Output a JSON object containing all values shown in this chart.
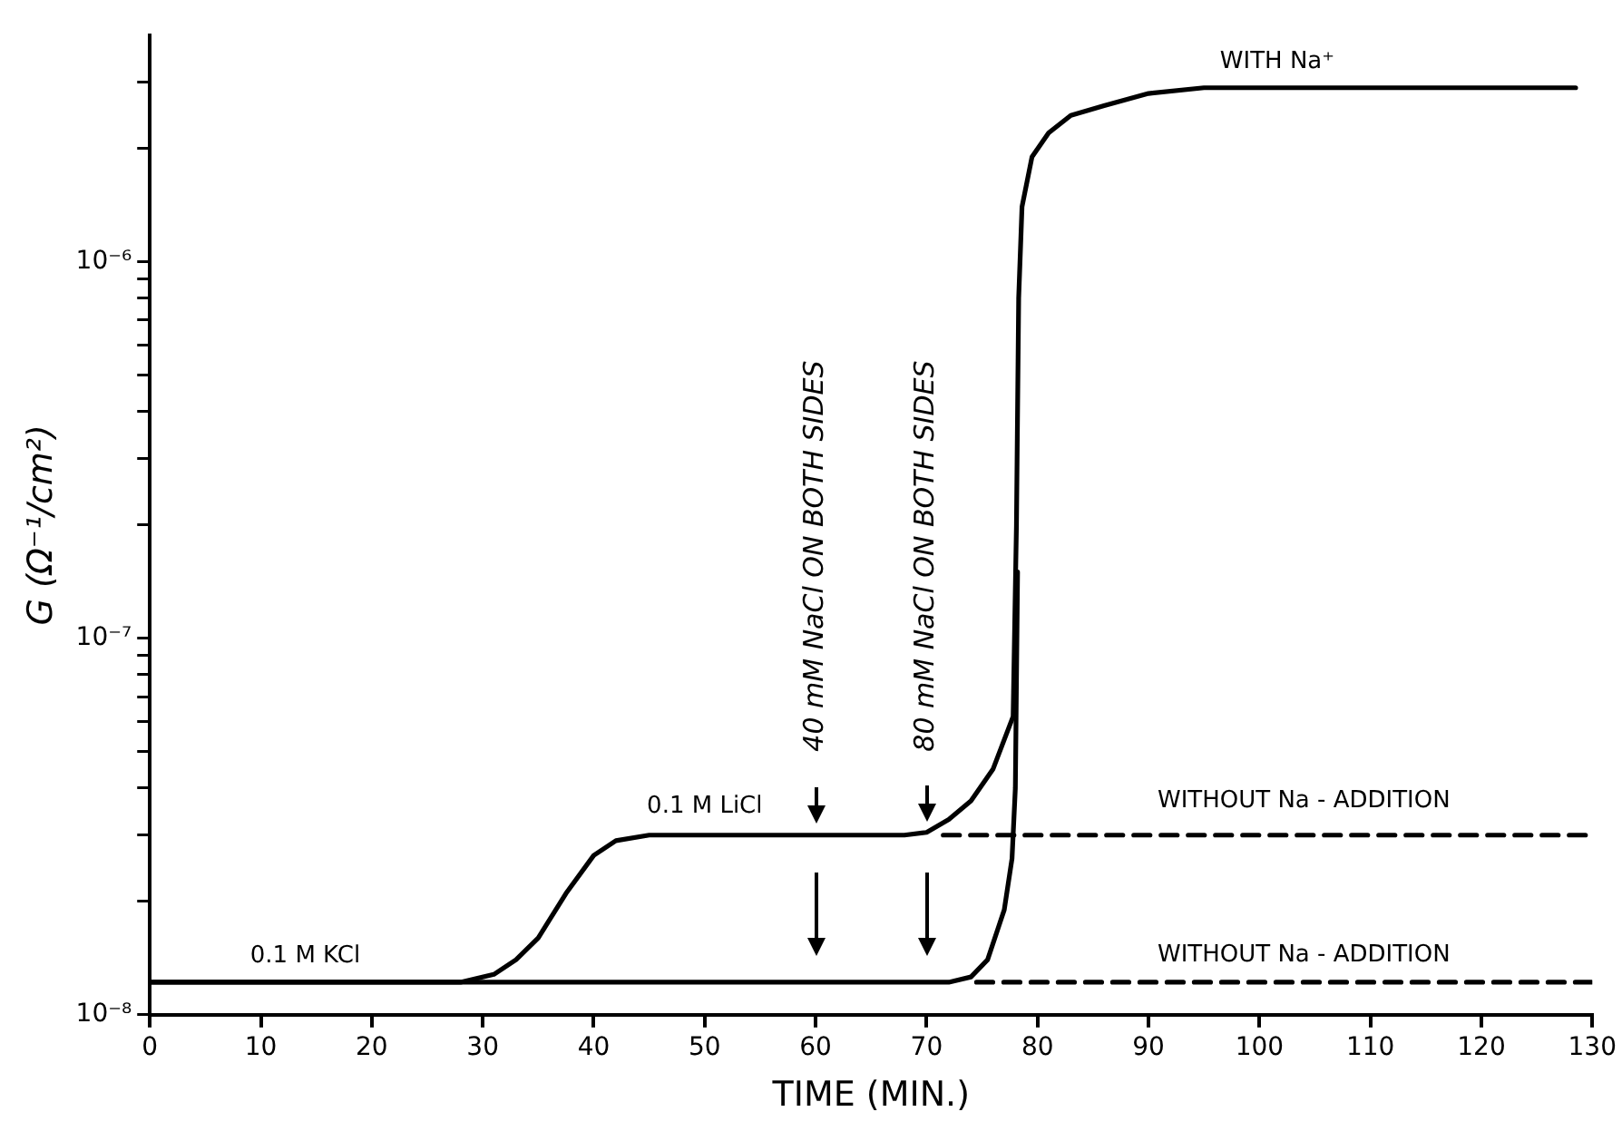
{
  "chart_data": {
    "type": "line",
    "xlabel": "TIME (MIN.)",
    "ylabel": "G (Ω⁻¹/cm²)",
    "log": "y",
    "grid": false,
    "legend": false,
    "marker": "none",
    "xlim": [
      0,
      130
    ],
    "xticks": [
      0,
      10,
      20,
      30,
      40,
      50,
      60,
      70,
      80,
      90,
      100,
      110,
      120,
      130
    ],
    "ylim": [
      1e-08,
      4e-06
    ],
    "yticks": [
      {
        "value": 1e-08,
        "label": "10⁻⁸"
      },
      {
        "value": 2e-08,
        "label": null
      },
      {
        "value": 3e-08,
        "label": null
      },
      {
        "value": 4e-08,
        "label": null
      },
      {
        "value": 5e-08,
        "label": null
      },
      {
        "value": 6e-08,
        "label": null
      },
      {
        "value": 7e-08,
        "label": null
      },
      {
        "value": 8e-08,
        "label": null
      },
      {
        "value": 9e-08,
        "label": null
      },
      {
        "value": 1e-07,
        "label": "10⁻⁷"
      },
      {
        "value": 2e-07,
        "label": null
      },
      {
        "value": 3e-07,
        "label": null
      },
      {
        "value": 4e-07,
        "label": null
      },
      {
        "value": 5e-07,
        "label": null
      },
      {
        "value": 6e-07,
        "label": null
      },
      {
        "value": 7e-07,
        "label": null
      },
      {
        "value": 8e-07,
        "label": null
      },
      {
        "value": 9e-07,
        "label": null
      },
      {
        "value": 1e-06,
        "label": "10⁻⁶"
      },
      {
        "value": 2e-06,
        "label": null
      },
      {
        "value": 3e-06,
        "label": null
      }
    ],
    "series": [
      {
        "color": "#000000",
        "line_style": "solid",
        "x": [
          0,
          28,
          31,
          33,
          35,
          37.5,
          40,
          42,
          45,
          68,
          70,
          72,
          74,
          76,
          77.8,
          78.1,
          78.3,
          78.6,
          79.5,
          81,
          83,
          86,
          90,
          95,
          128.5
        ],
        "values": [
          1.22e-08,
          1.22e-08,
          1.28e-08,
          1.4e-08,
          1.6e-08,
          2.1e-08,
          2.65e-08,
          2.9e-08,
          3e-08,
          3e-08,
          3.05e-08,
          3.3e-08,
          3.7e-08,
          4.5e-08,
          6.2e-08,
          2e-07,
          8e-07,
          1.4e-06,
          1.9e-06,
          2.2e-06,
          2.45e-06,
          2.6e-06,
          2.8e-06,
          2.9e-06,
          2.9e-06
        ]
      },
      {
        "color": "#000000",
        "line_style": "solid",
        "x": [
          0,
          72,
          74,
          75.5,
          77,
          77.7,
          78,
          78.2
        ],
        "values": [
          1.22e-08,
          1.22e-08,
          1.26e-08,
          1.4e-08,
          1.9e-08,
          2.6e-08,
          4e-08,
          1.5e-07
        ]
      },
      {
        "color": "#000000",
        "line_style": "dashed",
        "x": [
          71.5,
          130
        ],
        "values": [
          3e-08,
          3e-08
        ]
      },
      {
        "color": "#000000",
        "line_style": "dashed",
        "x": [
          74.5,
          130
        ],
        "values": [
          1.22e-08,
          1.22e-08
        ]
      }
    ],
    "annotations": [
      "40 mM NaCl ON BOTH SIDES",
      "80 mM NaCl ON BOTH SIDES",
      "0.1 M KCl",
      "0.1 M LiCl",
      "WITH Na⁺",
      "WITHOUT Na - ADDITION",
      "WITHOUT Na - ADDITION"
    ]
  }
}
